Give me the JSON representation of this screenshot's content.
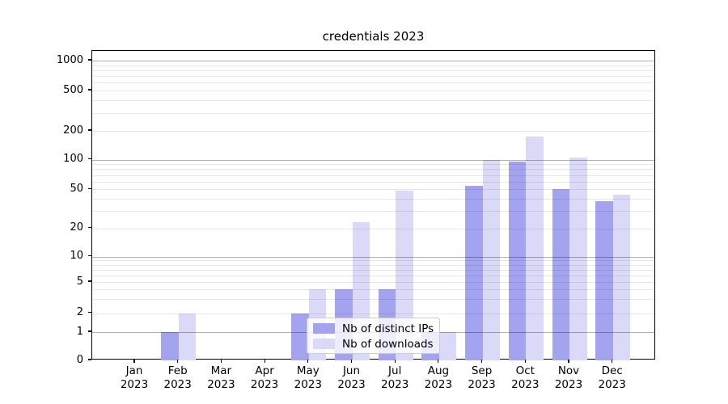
{
  "chart_data": {
    "type": "bar",
    "title": "credentials 2023",
    "categories": [
      "Jan",
      "Feb",
      "Mar",
      "Apr",
      "May",
      "Jun",
      "Jul",
      "Aug",
      "Sep",
      "Oct",
      "Nov",
      "Dec"
    ],
    "year_label": "2023",
    "series": [
      {
        "name": "Nb of distinct IPs",
        "color": "#a3a3ef",
        "values": [
          0,
          1,
          0,
          0,
          2,
          4,
          4,
          1,
          54,
          95,
          50,
          38
        ]
      },
      {
        "name": "Nb of downloads",
        "color": "#dadaf8",
        "values": [
          0,
          2,
          0,
          0,
          4,
          23,
          48,
          1,
          100,
          175,
          106,
          44
        ]
      }
    ],
    "y_axis": {
      "scale": "symlog",
      "tick_labels": [
        "0",
        "1",
        "2",
        "5",
        "10",
        "20",
        "50",
        "100",
        "200",
        "500",
        "1000"
      ],
      "major_grid_values": [
        1,
        10,
        100,
        1000
      ],
      "minor_grid_values": [
        2,
        3,
        4,
        5,
        6,
        7,
        8,
        9,
        20,
        30,
        40,
        50,
        60,
        70,
        80,
        90,
        200,
        300,
        400,
        500,
        600,
        700,
        800,
        900
      ],
      "range": [
        0,
        1100
      ]
    },
    "grid": "both",
    "legend": {
      "position": "inside-bottom-center",
      "entries": [
        "Nb of distinct IPs",
        "Nb of downloads"
      ]
    }
  },
  "colors": {
    "background": "#ffffff",
    "spine": "#000000",
    "major_grid": "rgba(0,0,0,0.30)",
    "minor_grid": "rgba(0,0,0,0.09)",
    "legend_border": "#cccccc",
    "text": "#000000"
  }
}
